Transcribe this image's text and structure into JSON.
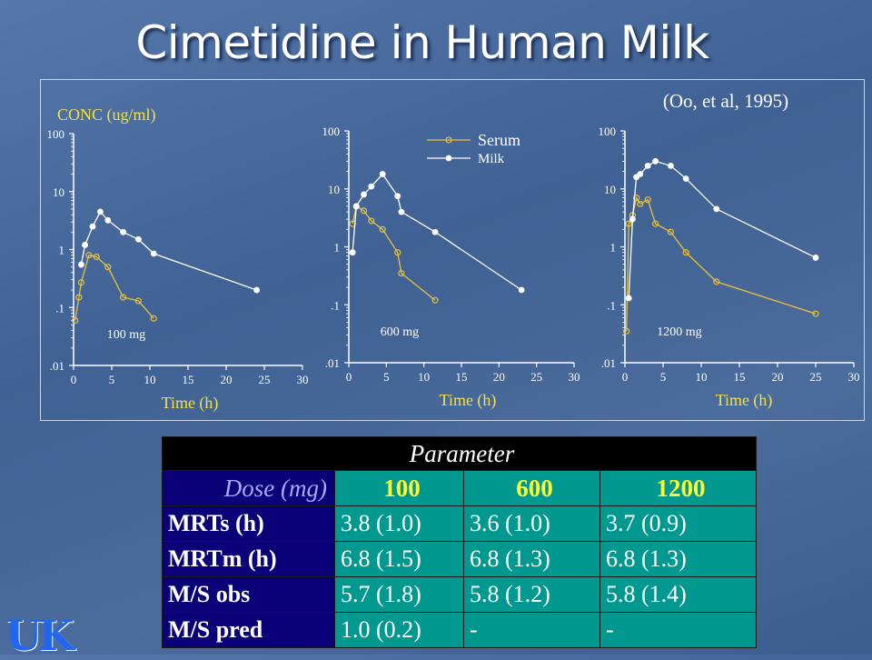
{
  "slide": {
    "title": "Cimetidine in Human Milk",
    "citation": "(Oo, et al, 1995)",
    "logo": "UK"
  },
  "colors": {
    "serum": "#e8c23a",
    "milk": "#ffffff",
    "conc_label": "#f2e04a",
    "axis_label": "#f2e04a"
  },
  "chart_data": [
    {
      "type": "scatter",
      "title": "",
      "ylabel": "CONC (ug/ml)",
      "xlabel": "Time (h)",
      "dose_label": "100 mg",
      "yscale": "log",
      "ylim": [
        0.01,
        100
      ],
      "xlim": [
        0,
        30
      ],
      "x_ticks": [
        "0",
        "5",
        "10",
        "15",
        "20",
        "25",
        "30"
      ],
      "y_ticks": [
        "100",
        "10",
        "1",
        ".1",
        ".01"
      ],
      "series": [
        {
          "name": "Serum",
          "x": [
            0.2,
            0.7,
            1.0,
            2.0,
            3.0,
            4.5,
            6.5,
            8.5,
            10.5
          ],
          "y": [
            0.06,
            0.15,
            0.27,
            0.8,
            0.75,
            0.5,
            0.15,
            0.13,
            0.065
          ]
        },
        {
          "name": "Milk",
          "x": [
            1.0,
            1.5,
            2.5,
            3.5,
            4.5,
            6.5,
            8.5,
            10.5,
            24.0
          ],
          "y": [
            0.55,
            1.2,
            2.5,
            4.5,
            3.2,
            2.0,
            1.5,
            0.85,
            0.2
          ]
        }
      ]
    },
    {
      "type": "scatter",
      "title": "",
      "xlabel": "Time (h)",
      "dose_label": "600 mg",
      "yscale": "log",
      "ylim": [
        0.01,
        100
      ],
      "xlim": [
        0,
        30
      ],
      "x_ticks": [
        "0",
        "5",
        "10",
        "15",
        "20",
        "25",
        "30"
      ],
      "y_ticks": [
        "100",
        "10",
        "1",
        ".1",
        ".01"
      ],
      "legend": {
        "position": "top",
        "entries": [
          "Serum",
          "Milk"
        ]
      },
      "series": [
        {
          "name": "Serum",
          "x": [
            0.5,
            1.0,
            2.0,
            3.0,
            4.5,
            6.5,
            7.0,
            11.5
          ],
          "y": [
            2.5,
            5.0,
            4.2,
            2.8,
            2.0,
            0.8,
            0.35,
            0.12
          ]
        },
        {
          "name": "Milk",
          "x": [
            0.5,
            1.0,
            2.0,
            3.0,
            4.5,
            6.5,
            7.0,
            11.5,
            23.0
          ],
          "y": [
            0.8,
            5.0,
            8.0,
            11.0,
            18.0,
            7.5,
            4.0,
            1.8,
            0.18
          ]
        }
      ]
    },
    {
      "type": "scatter",
      "title": "",
      "xlabel": "Time (h)",
      "dose_label": "1200 mg",
      "yscale": "log",
      "ylim": [
        0.01,
        100
      ],
      "xlim": [
        0,
        30
      ],
      "x_ticks": [
        "0",
        "5",
        "10",
        "15",
        "20",
        "25",
        "30"
      ],
      "y_ticks": [
        "100",
        "10",
        "1",
        ".1",
        ".01"
      ],
      "series": [
        {
          "name": "Serum",
          "x": [
            0.2,
            0.5,
            1.0,
            1.5,
            2.0,
            3.0,
            4.0,
            6.0,
            8.0,
            12.0,
            25.0
          ],
          "y": [
            0.035,
            2.5,
            3.5,
            7.0,
            5.5,
            6.5,
            2.5,
            1.8,
            0.8,
            0.25,
            0.07
          ]
        },
        {
          "name": "Milk",
          "x": [
            0.5,
            1.0,
            1.5,
            2.0,
            3.0,
            4.0,
            6.0,
            8.0,
            12.0,
            25.0
          ],
          "y": [
            0.13,
            3.0,
            16.0,
            18.0,
            25.0,
            30.0,
            25.0,
            15.0,
            4.5,
            0.65
          ]
        }
      ]
    }
  ],
  "table": {
    "header": "Parameter",
    "dose_label": "Dose (mg)",
    "doses": [
      "100",
      "600",
      "1200"
    ],
    "rows": [
      {
        "label": "MRTs (h)",
        "values": [
          "3.8  (1.0)",
          "3.6 (1.0)",
          "3.7 (0.9)"
        ]
      },
      {
        "label": "MRTm (h)",
        "values": [
          "6.8 (1.5)",
          "6.8 (1.3)",
          "6.8 (1.3)"
        ]
      },
      {
        "label": "M/S obs",
        "values": [
          "5.7 (1.8)",
          "5.8 (1.2)",
          "5.8 (1.4)"
        ]
      },
      {
        "label": "M/S pred",
        "values": [
          "1.0 (0.2)",
          "-",
          "-"
        ]
      }
    ]
  }
}
